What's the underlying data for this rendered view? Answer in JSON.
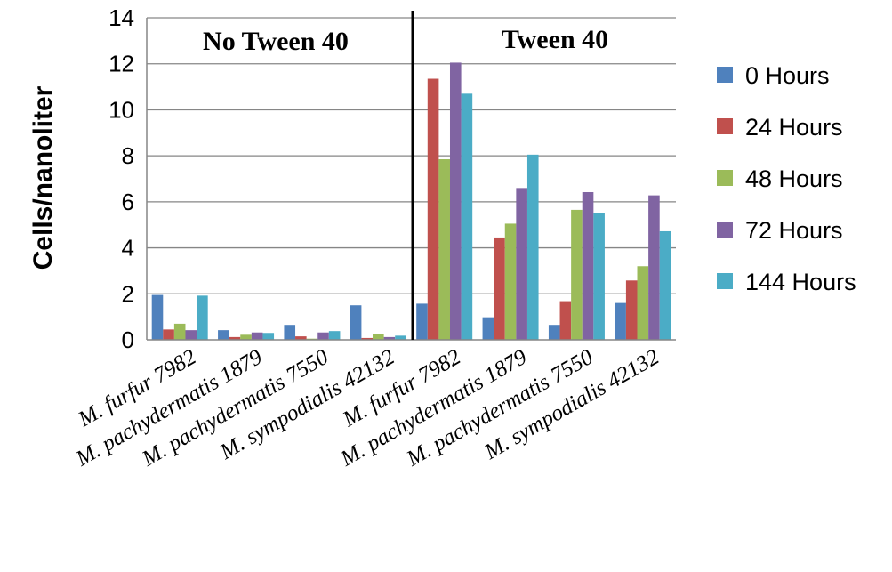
{
  "chart_data": {
    "type": "bar",
    "ylabel": "Cells/nanoliter",
    "xlabel": "",
    "ylim": [
      0,
      14
    ],
    "yticks": [
      0,
      2,
      4,
      6,
      8,
      10,
      12,
      14
    ],
    "grid": true,
    "legend_position": "right",
    "categories": [
      [
        "M. ",
        "furfur",
        " 7982"
      ],
      [
        "M. pachydermatis",
        "",
        " 1879"
      ],
      [
        "M. pachydermatis",
        "",
        " 7550"
      ],
      [
        "M. sympodialis",
        "",
        " 42132"
      ],
      [
        "M. ",
        "furfur",
        " 7982"
      ],
      [
        "M. pachydermatis",
        "",
        " 1879"
      ],
      [
        "M. pachydermatis",
        "",
        " 7550"
      ],
      [
        "M. sympodialis",
        "",
        " 42132"
      ]
    ],
    "category_names": [
      "M. furfur 7982",
      "M. pachydermatis 1879",
      "M. pachydermatis 7550",
      "M. sympodialis 42132",
      "M. furfur 7982",
      "M. pachydermatis 1879",
      "M. pachydermatis 7550",
      "M. sympodialis 42132"
    ],
    "annotations": [
      "No Tween 40",
      "Tween 40"
    ],
    "series": [
      {
        "name": "0 Hours",
        "color": "#4F81BD",
        "values": [
          1.95,
          0.42,
          0.65,
          1.5,
          1.57,
          0.98,
          0.65,
          1.6
        ]
      },
      {
        "name": "24 Hours",
        "color": "#C0504D",
        "values": [
          0.45,
          0.12,
          0.15,
          0.08,
          11.35,
          4.45,
          1.68,
          2.58
        ]
      },
      {
        "name": "48 Hours",
        "color": "#9BBB59",
        "values": [
          0.7,
          0.22,
          0.05,
          0.25,
          7.85,
          5.05,
          5.65,
          3.2
        ]
      },
      {
        "name": "72 Hours",
        "color": "#8064A2",
        "values": [
          0.42,
          0.32,
          0.32,
          0.12,
          12.05,
          6.6,
          6.42,
          6.28
        ]
      },
      {
        "name": "144 Hours",
        "color": "#4BACC6",
        "values": [
          1.92,
          0.3,
          0.38,
          0.18,
          10.7,
          8.05,
          5.5,
          4.72
        ]
      }
    ]
  }
}
